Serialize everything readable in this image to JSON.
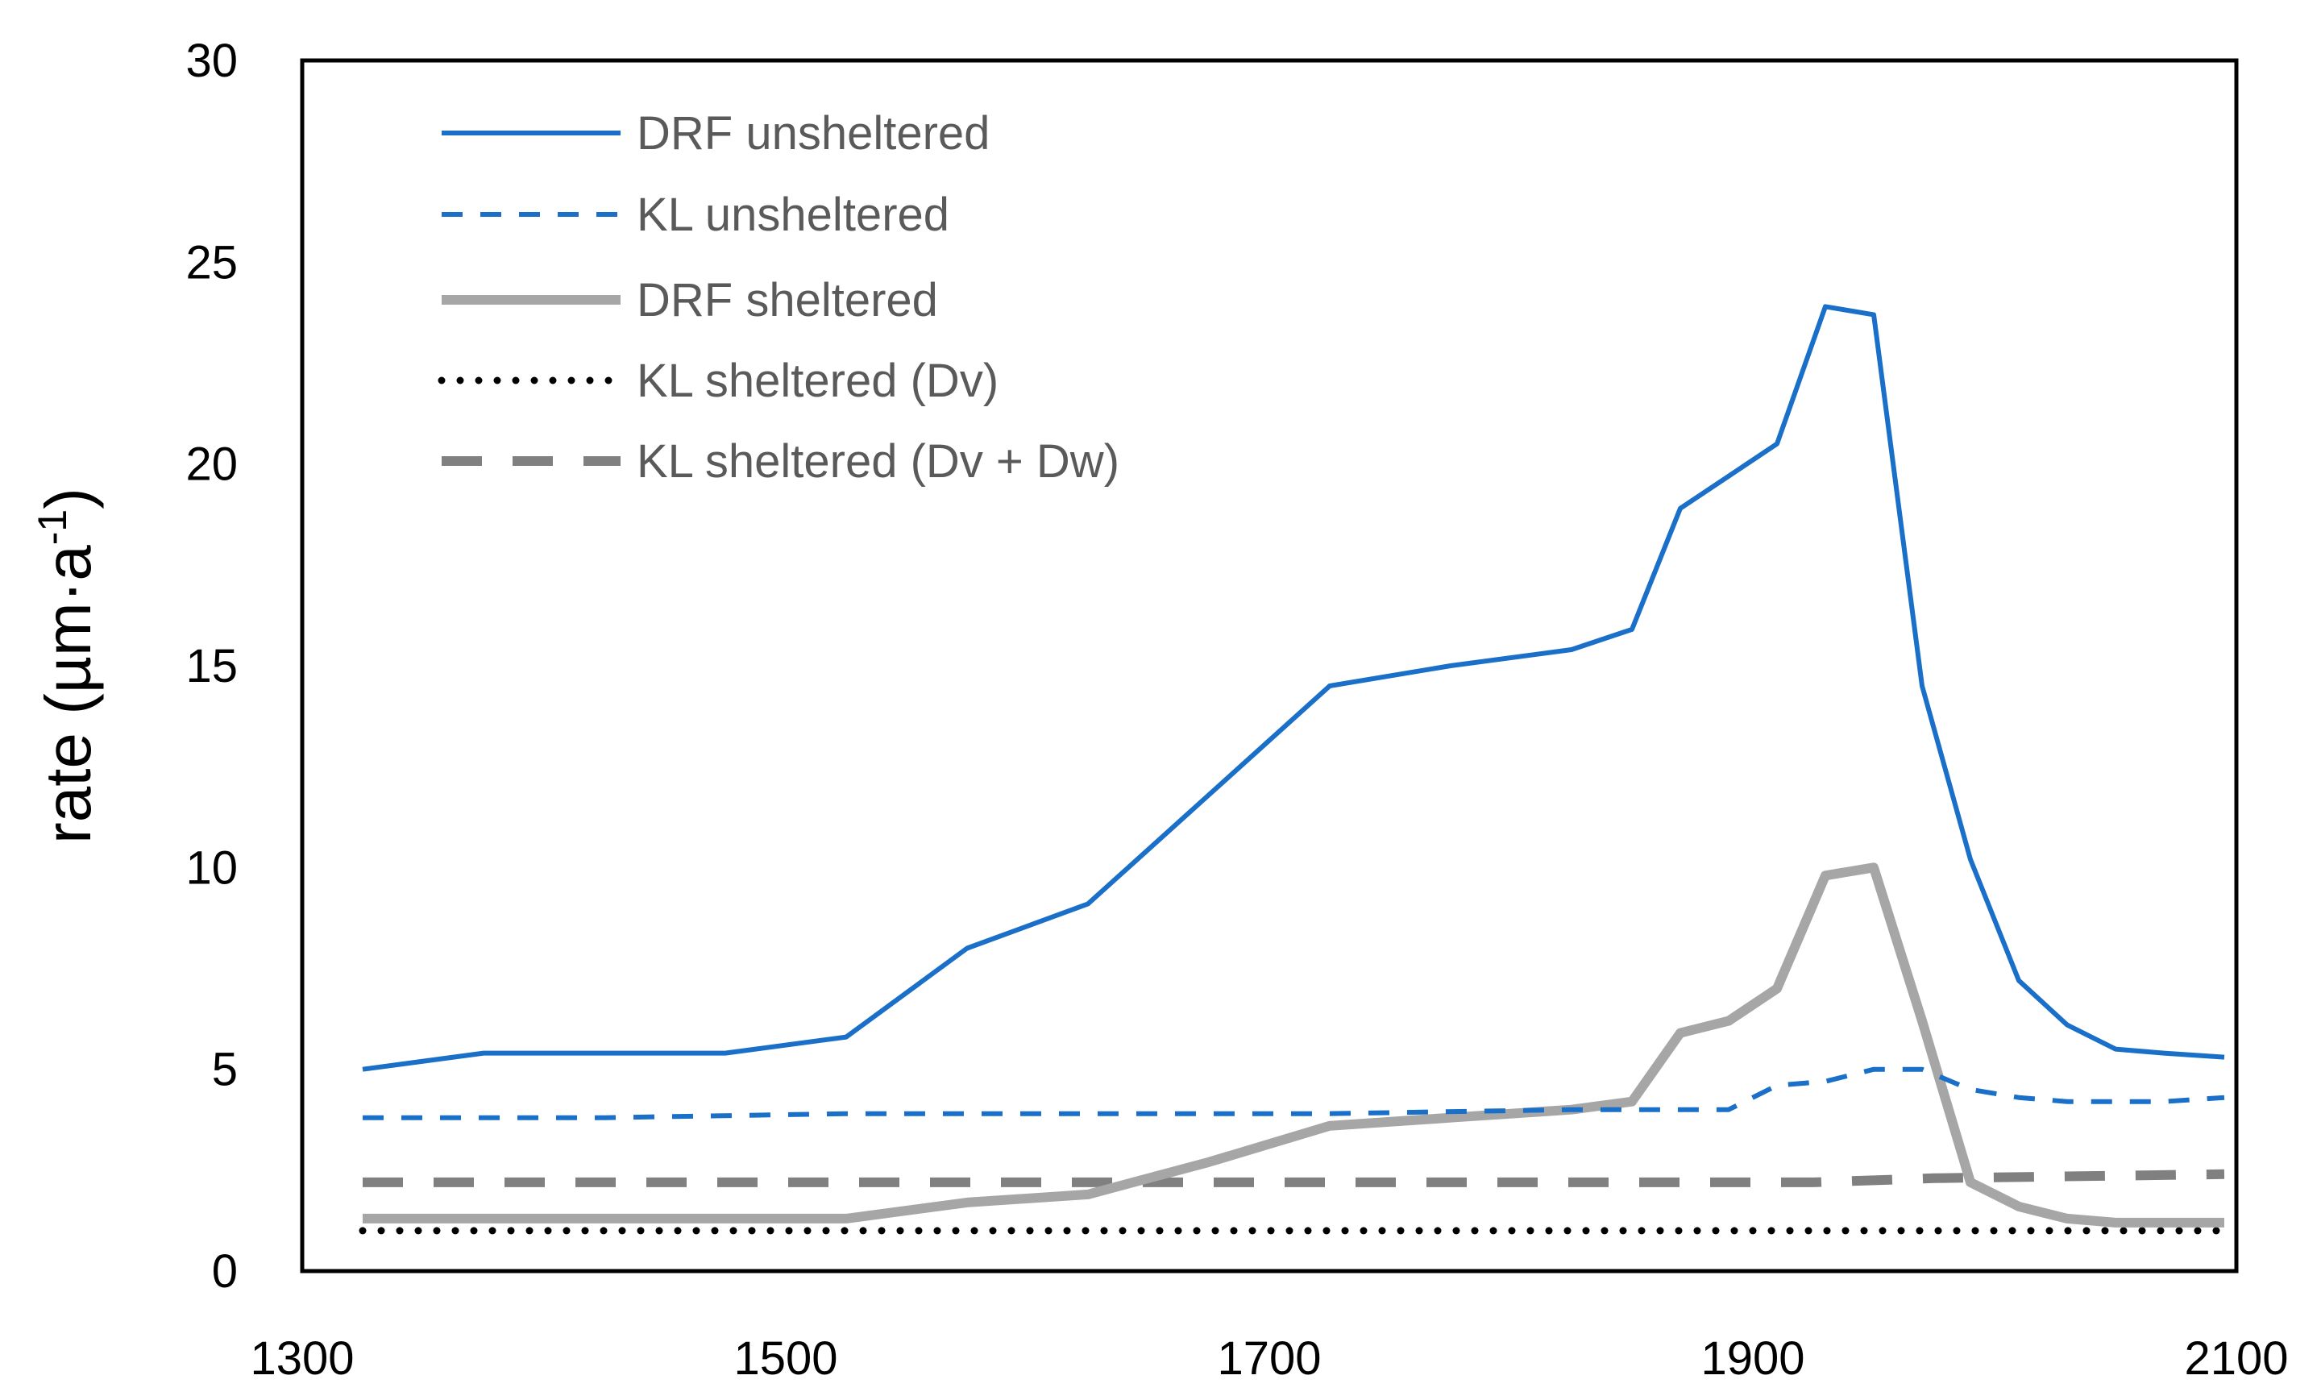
{
  "chart_data": {
    "type": "line",
    "title": "",
    "xlabel": "",
    "ylabel": "rate (µm·a",
    "ylabel_superscript": "-1",
    "ylabel_close": ")",
    "xlim": [
      1300,
      2100
    ],
    "ylim": [
      0,
      30
    ],
    "xticks": [
      1300,
      1500,
      1700,
      1900,
      2100
    ],
    "yticks": [
      0,
      5,
      10,
      15,
      20,
      25,
      30
    ],
    "legend_position": "top-left",
    "grid": false,
    "series": [
      {
        "name": "DRF unsheltered",
        "color": "#1a6fc8",
        "style": "solid",
        "x": [
          1325,
          1375,
          1425,
          1475,
          1525,
          1575,
          1625,
          1675,
          1725,
          1775,
          1825,
          1850,
          1870,
          1890,
          1910,
          1930,
          1950,
          1970,
          1990,
          2010,
          2030,
          2050,
          2070,
          2095
        ],
        "y": [
          5.0,
          5.4,
          5.4,
          5.4,
          5.8,
          8.0,
          9.1,
          11.8,
          14.5,
          15.0,
          15.4,
          15.9,
          18.9,
          19.7,
          20.5,
          23.9,
          23.7,
          14.5,
          10.2,
          7.2,
          6.1,
          5.5,
          5.4,
          5.3
        ]
      },
      {
        "name": "KL unsheltered",
        "color": "#1a6fc8",
        "style": "dashed",
        "x": [
          1325,
          1425,
          1525,
          1625,
          1725,
          1825,
          1850,
          1890,
          1910,
          1930,
          1950,
          1970,
          1990,
          2010,
          2030,
          2050,
          2070,
          2095
        ],
        "y": [
          3.8,
          3.8,
          3.9,
          3.9,
          3.9,
          4.0,
          4.0,
          4.0,
          4.6,
          4.7,
          5.0,
          5.0,
          4.5,
          4.3,
          4.2,
          4.2,
          4.2,
          4.3
        ]
      },
      {
        "name": "DRF sheltered",
        "color": "#a6a6a6",
        "style": "solid-thick",
        "x": [
          1325,
          1425,
          1525,
          1575,
          1625,
          1675,
          1725,
          1775,
          1825,
          1850,
          1870,
          1890,
          1910,
          1930,
          1950,
          1970,
          1990,
          2010,
          2030,
          2050,
          2070,
          2095
        ],
        "y": [
          1.3,
          1.3,
          1.3,
          1.7,
          1.9,
          2.7,
          3.6,
          3.8,
          4.0,
          4.2,
          5.9,
          6.2,
          7.0,
          9.8,
          10.0,
          6.2,
          2.2,
          1.6,
          1.3,
          1.2,
          1.2,
          1.2
        ]
      },
      {
        "name": "KL sheltered (Dv)",
        "color": "#000000",
        "style": "dotted",
        "x": [
          1325,
          2095
        ],
        "y": [
          1.0,
          1.0
        ]
      },
      {
        "name": "KL sheltered (Dv + Dw)",
        "color": "#808080",
        "style": "long-dash",
        "x": [
          1325,
          1725,
          1925,
          1975,
          2095
        ],
        "y": [
          2.2,
          2.2,
          2.2,
          2.3,
          2.4
        ]
      }
    ]
  }
}
